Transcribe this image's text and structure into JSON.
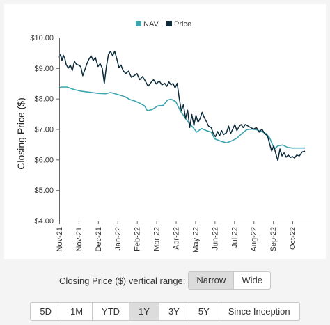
{
  "chart_data": {
    "type": "line",
    "title": "",
    "xlabel": "",
    "ylabel": "Closing Price ($)",
    "ylim": [
      4.0,
      10.0
    ],
    "yticks": [
      "$4.00",
      "$5.00",
      "$6.00",
      "$7.00",
      "$8.00",
      "$9.00",
      "$10.00"
    ],
    "xlim": [
      "2021-11-01",
      "2022-10-31"
    ],
    "xticks": [
      {
        "date": "2021-11-01",
        "label": "Nov-21"
      },
      {
        "date": "2021-11-29",
        "label": "Nov-21"
      },
      {
        "date": "2021-12-27",
        "label": "Dec-21"
      },
      {
        "date": "2022-01-24",
        "label": "Jan-22"
      },
      {
        "date": "2022-02-21",
        "label": "Feb-22"
      },
      {
        "date": "2022-03-21",
        "label": "Mar-22"
      },
      {
        "date": "2022-04-18",
        "label": "Apr-22"
      },
      {
        "date": "2022-05-16",
        "label": "May-22"
      },
      {
        "date": "2022-06-13",
        "label": "Jun-22"
      },
      {
        "date": "2022-07-11",
        "label": "Jul-22"
      },
      {
        "date": "2022-08-08",
        "label": "Aug-22"
      },
      {
        "date": "2022-09-05",
        "label": "Sep-22"
      },
      {
        "date": "2022-10-03",
        "label": "Oct-22"
      }
    ],
    "grid": false,
    "legend": "top-center",
    "series": [
      {
        "name": "NAV",
        "color": "#3ba5b0",
        "points": [
          [
            "2021-11-01",
            8.36
          ],
          [
            "2021-11-05",
            8.38
          ],
          [
            "2021-11-12",
            8.38
          ],
          [
            "2021-11-22",
            8.3
          ],
          [
            "2021-12-03",
            8.24
          ],
          [
            "2021-12-15",
            8.21
          ],
          [
            "2021-12-27",
            8.17
          ],
          [
            "2022-01-07",
            8.16
          ],
          [
            "2022-01-14",
            8.2
          ],
          [
            "2022-01-25",
            8.13
          ],
          [
            "2022-02-04",
            8.06
          ],
          [
            "2022-02-11",
            7.97
          ],
          [
            "2022-02-18",
            7.92
          ],
          [
            "2022-02-25",
            7.85
          ],
          [
            "2022-03-04",
            7.76
          ],
          [
            "2022-03-08",
            7.6
          ],
          [
            "2022-03-15",
            7.64
          ],
          [
            "2022-03-23",
            7.76
          ],
          [
            "2022-03-31",
            7.78
          ],
          [
            "2022-04-06",
            7.95
          ],
          [
            "2022-04-11",
            7.98
          ],
          [
            "2022-04-18",
            7.9
          ],
          [
            "2022-04-25",
            7.58
          ],
          [
            "2022-04-29",
            7.45
          ],
          [
            "2022-05-06",
            7.22
          ],
          [
            "2022-05-13",
            7.05
          ],
          [
            "2022-05-18",
            6.9
          ],
          [
            "2022-05-25",
            7.02
          ],
          [
            "2022-06-01",
            6.95
          ],
          [
            "2022-06-08",
            6.9
          ],
          [
            "2022-06-13",
            6.68
          ],
          [
            "2022-06-22",
            6.6
          ],
          [
            "2022-06-30",
            6.55
          ],
          [
            "2022-07-08",
            6.62
          ],
          [
            "2022-07-15",
            6.7
          ],
          [
            "2022-07-22",
            6.85
          ],
          [
            "2022-07-29",
            6.98
          ],
          [
            "2022-08-05",
            7.0
          ],
          [
            "2022-08-12",
            6.98
          ],
          [
            "2022-08-19",
            6.93
          ],
          [
            "2022-08-26",
            6.85
          ],
          [
            "2022-08-31",
            6.72
          ],
          [
            "2022-09-03",
            6.55
          ],
          [
            "2022-09-07",
            6.35
          ],
          [
            "2022-09-12",
            6.45
          ],
          [
            "2022-09-19",
            6.48
          ],
          [
            "2022-09-26",
            6.4
          ],
          [
            "2022-10-03",
            6.38
          ],
          [
            "2022-10-10",
            6.38
          ],
          [
            "2022-10-17",
            6.38
          ],
          [
            "2022-10-21",
            6.38
          ]
        ]
      },
      {
        "name": "Price",
        "color": "#0b2a3a",
        "points": [
          [
            "2021-11-01",
            9.35
          ],
          [
            "2021-11-03",
            9.45
          ],
          [
            "2021-11-05",
            9.25
          ],
          [
            "2021-11-07",
            9.42
          ],
          [
            "2021-11-09",
            9.32
          ],
          [
            "2021-11-11",
            9.12
          ],
          [
            "2021-11-14",
            9.0
          ],
          [
            "2021-11-17",
            9.1
          ],
          [
            "2021-11-20",
            8.92
          ],
          [
            "2021-11-23",
            9.22
          ],
          [
            "2021-11-26",
            9.12
          ],
          [
            "2021-11-29",
            9.1
          ],
          [
            "2021-12-02",
            9.05
          ],
          [
            "2021-12-05",
            8.75
          ],
          [
            "2021-12-08",
            8.95
          ],
          [
            "2021-12-11",
            9.15
          ],
          [
            "2021-12-14",
            9.3
          ],
          [
            "2021-12-17",
            9.4
          ],
          [
            "2021-12-20",
            9.25
          ],
          [
            "2021-12-23",
            9.35
          ],
          [
            "2021-12-27",
            9.05
          ],
          [
            "2021-12-30",
            9.15
          ],
          [
            "2022-01-02",
            9.0
          ],
          [
            "2022-01-05",
            8.5
          ],
          [
            "2022-01-08",
            9.05
          ],
          [
            "2022-01-11",
            9.45
          ],
          [
            "2022-01-14",
            9.55
          ],
          [
            "2022-01-17",
            9.4
          ],
          [
            "2022-01-20",
            9.55
          ],
          [
            "2022-01-23",
            9.3
          ],
          [
            "2022-01-26",
            9.02
          ],
          [
            "2022-01-29",
            9.1
          ],
          [
            "2022-02-01",
            8.92
          ],
          [
            "2022-02-05",
            8.82
          ],
          [
            "2022-02-09",
            8.9
          ],
          [
            "2022-02-13",
            8.7
          ],
          [
            "2022-02-17",
            8.75
          ],
          [
            "2022-02-21",
            8.82
          ],
          [
            "2022-02-25",
            8.62
          ],
          [
            "2022-03-01",
            8.72
          ],
          [
            "2022-03-05",
            8.58
          ],
          [
            "2022-03-09",
            8.4
          ],
          [
            "2022-03-13",
            8.52
          ],
          [
            "2022-03-17",
            8.62
          ],
          [
            "2022-03-21",
            8.48
          ],
          [
            "2022-03-25",
            8.58
          ],
          [
            "2022-03-29",
            8.45
          ],
          [
            "2022-04-02",
            8.5
          ],
          [
            "2022-04-05",
            8.4
          ],
          [
            "2022-04-08",
            8.55
          ],
          [
            "2022-04-11",
            8.45
          ],
          [
            "2022-04-14",
            8.5
          ],
          [
            "2022-04-17",
            8.35
          ],
          [
            "2022-04-20",
            8.5
          ],
          [
            "2022-04-23",
            8.0
          ],
          [
            "2022-04-26",
            7.6
          ],
          [
            "2022-04-29",
            7.8
          ],
          [
            "2022-05-02",
            7.35
          ],
          [
            "2022-05-05",
            7.62
          ],
          [
            "2022-05-08",
            7.05
          ],
          [
            "2022-05-11",
            7.48
          ],
          [
            "2022-05-14",
            7.12
          ],
          [
            "2022-05-17",
            7.45
          ],
          [
            "2022-05-20",
            7.22
          ],
          [
            "2022-05-23",
            7.35
          ],
          [
            "2022-05-26",
            7.55
          ],
          [
            "2022-05-29",
            7.38
          ],
          [
            "2022-06-01",
            7.25
          ],
          [
            "2022-06-04",
            7.1
          ],
          [
            "2022-06-08",
            7.05
          ],
          [
            "2022-06-11",
            6.85
          ],
          [
            "2022-06-14",
            6.75
          ],
          [
            "2022-06-17",
            6.92
          ],
          [
            "2022-06-20",
            6.78
          ],
          [
            "2022-06-23",
            6.95
          ],
          [
            "2022-06-26",
            6.82
          ],
          [
            "2022-06-30",
            6.88
          ],
          [
            "2022-07-03",
            7.1
          ],
          [
            "2022-07-06",
            6.85
          ],
          [
            "2022-07-09",
            7.0
          ],
          [
            "2022-07-12",
            7.15
          ],
          [
            "2022-07-15",
            6.95
          ],
          [
            "2022-07-18",
            7.08
          ],
          [
            "2022-07-21",
            7.15
          ],
          [
            "2022-07-24",
            7.05
          ],
          [
            "2022-07-27",
            7.15
          ],
          [
            "2022-07-31",
            7.1
          ],
          [
            "2022-08-04",
            7.05
          ],
          [
            "2022-08-08",
            7.0
          ],
          [
            "2022-08-12",
            7.05
          ],
          [
            "2022-08-16",
            6.9
          ],
          [
            "2022-08-20",
            7.0
          ],
          [
            "2022-08-24",
            6.85
          ],
          [
            "2022-08-28",
            6.78
          ],
          [
            "2022-08-31",
            6.52
          ],
          [
            "2022-09-03",
            6.28
          ],
          [
            "2022-09-06",
            6.45
          ],
          [
            "2022-09-09",
            6.2
          ],
          [
            "2022-09-12",
            5.97
          ],
          [
            "2022-09-15",
            6.35
          ],
          [
            "2022-09-18",
            6.12
          ],
          [
            "2022-09-21",
            6.22
          ],
          [
            "2022-09-24",
            6.08
          ],
          [
            "2022-09-27",
            6.15
          ],
          [
            "2022-09-30",
            6.07
          ],
          [
            "2022-10-03",
            6.1
          ],
          [
            "2022-10-06",
            6.05
          ],
          [
            "2022-10-09",
            6.15
          ],
          [
            "2022-10-13",
            6.12
          ],
          [
            "2022-10-17",
            6.25
          ],
          [
            "2022-10-21",
            6.28
          ]
        ]
      }
    ]
  },
  "controls": {
    "range_label": "Closing Price ($) vertical range:",
    "range_buttons": [
      {
        "label": "Narrow",
        "active": true
      },
      {
        "label": "Wide",
        "active": false
      }
    ],
    "period_buttons": [
      {
        "label": "5D",
        "active": false
      },
      {
        "label": "1M",
        "active": false
      },
      {
        "label": "YTD",
        "active": false
      },
      {
        "label": "1Y",
        "active": true
      },
      {
        "label": "3Y",
        "active": false
      },
      {
        "label": "5Y",
        "active": false
      },
      {
        "label": "Since Inception",
        "active": false
      }
    ]
  }
}
